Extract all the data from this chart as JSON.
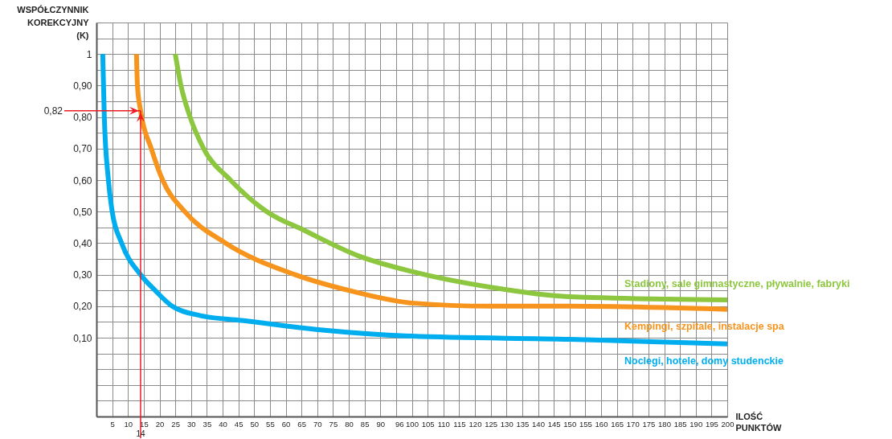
{
  "chart_data": {
    "type": "line",
    "xlabel": "ILOŚĆ PUNKTÓW",
    "ylabel": "WSPÓŁCZYNNIK KOREKCYJNY (K)",
    "xlim": [
      0,
      200
    ],
    "ylim": [
      -0.15,
      1.1
    ],
    "xticks": [
      5,
      10,
      15,
      20,
      25,
      30,
      35,
      40,
      45,
      50,
      55,
      60,
      65,
      70,
      75,
      80,
      85,
      90,
      96,
      100,
      105,
      110,
      115,
      120,
      125,
      130,
      135,
      140,
      145,
      150,
      155,
      160,
      165,
      170,
      175,
      180,
      185,
      190,
      195,
      200
    ],
    "yticks": [
      {
        "value": 0.1,
        "label": "0,10"
      },
      {
        "value": 0.2,
        "label": "0,20"
      },
      {
        "value": 0.3,
        "label": "0,30"
      },
      {
        "value": 0.4,
        "label": "0,40"
      },
      {
        "value": 0.5,
        "label": "0,50"
      },
      {
        "value": 0.6,
        "label": "0,60"
      },
      {
        "value": 0.7,
        "label": "0,70"
      },
      {
        "value": 0.8,
        "label": "0,80"
      },
      {
        "value": 0.9,
        "label": "0,90"
      },
      {
        "value": 1,
        "label": "1"
      }
    ],
    "grid": true,
    "marker": "none",
    "line_style": "solid",
    "series": [
      {
        "name": "Stadiony, sale gimnastyczne, pływalnie, fabryki",
        "color": "#8dc63f",
        "x": [
          25,
          26.8,
          29.7,
          34,
          42.5,
          54,
          66,
          83,
          100,
          125,
          150,
          200
        ],
        "values": [
          1,
          0.9,
          0.8,
          0.7,
          0.6,
          0.5,
          0.44,
          0.36,
          0.31,
          0.26,
          0.23,
          0.22
        ]
      },
      {
        "name": "Kempingi, szpitale, instalacje spa",
        "color": "#f7941d",
        "x": [
          12.7,
          13,
          14,
          17.4,
          21,
          28,
          41,
          63,
          80,
          100,
          125,
          150,
          200
        ],
        "values": [
          1,
          0.9,
          0.82,
          0.7,
          0.6,
          0.5,
          0.4,
          0.3,
          0.25,
          0.21,
          0.2,
          0.2,
          0.19
        ]
      },
      {
        "name": "Noclegi, hotele, domy studenckie",
        "color": "#00aeef",
        "x": [
          2,
          2.5,
          3.8,
          5,
          8,
          14,
          18.6,
          24,
          33,
          46,
          71,
          100,
          150,
          200
        ],
        "values": [
          1,
          0.8,
          0.6,
          0.5,
          0.4,
          0.3,
          0.25,
          0.2,
          0.17,
          0.155,
          0.125,
          0.105,
          0.095,
          0.08
        ]
      }
    ],
    "ref_lines": [
      {
        "axis": "y",
        "value": 0.82,
        "label": "0,82",
        "color": "#ed1c24"
      },
      {
        "axis": "x",
        "value": 14,
        "label": "14",
        "color": "#ed1c24"
      }
    ]
  }
}
